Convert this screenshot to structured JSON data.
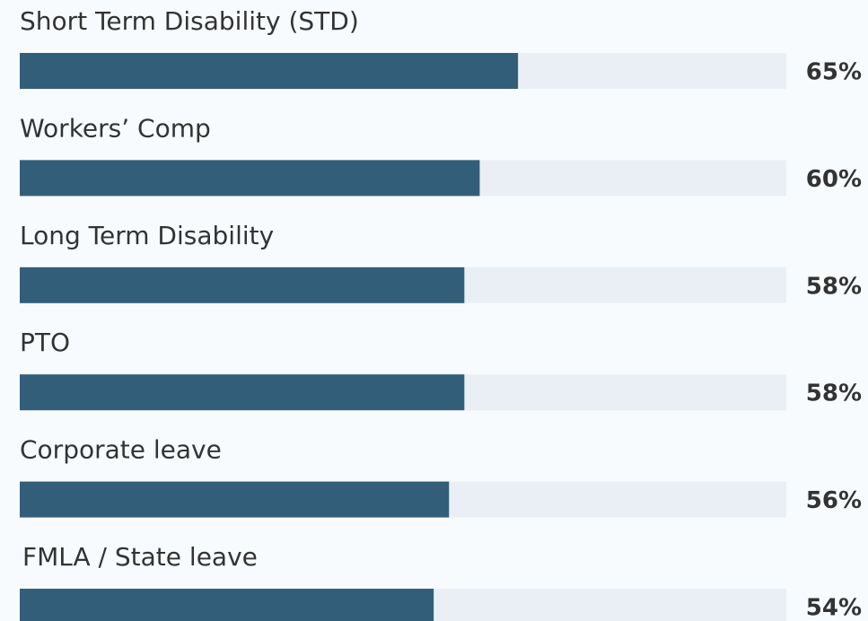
{
  "chart_data": {
    "type": "hbar",
    "categories": [
      "Short Term Disability (STD)",
      "Workers’ Comp",
      "Long Term Disability",
      "PTO",
      "Corporate leave",
      "FMLA / State leave"
    ],
    "values": [
      65,
      60,
      58,
      58,
      56,
      54
    ],
    "value_labels": [
      "65%",
      "60%",
      "58%",
      "58%",
      "56%",
      "54%"
    ],
    "color": "#335e7a",
    "track_color": "#e9eff5",
    "xlim": [
      0,
      100
    ]
  }
}
